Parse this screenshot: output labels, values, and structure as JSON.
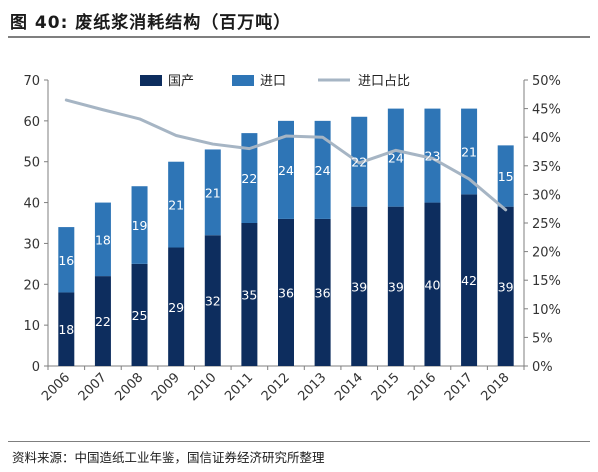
{
  "figure": {
    "title": "图 40: 废纸浆消耗结构（百万吨）",
    "source": "资料来源：中国造纸工业年鉴，国信证券经济研究所整理"
  },
  "colors": {
    "domestic": "#0d2d5e",
    "import": "#2e75b6",
    "ratio_line": "#a6b5c4",
    "axis": "#7f7f7f"
  },
  "chart_data": {
    "type": "bar",
    "stacked": true,
    "categories": [
      "2006",
      "2007",
      "2008",
      "2009",
      "2010",
      "2011",
      "2012",
      "2013",
      "2014",
      "2015",
      "2016",
      "2017",
      "2018"
    ],
    "series": [
      {
        "name": "国产",
        "axis": "left",
        "values": [
          18,
          22,
          25,
          29,
          32,
          35,
          36,
          36,
          39,
          39,
          40,
          42,
          39
        ]
      },
      {
        "name": "进口",
        "axis": "left",
        "values": [
          16,
          18,
          19,
          21,
          21,
          22,
          24,
          24,
          22,
          24,
          23,
          21,
          15
        ]
      },
      {
        "name": "进口占比",
        "type": "line",
        "axis": "right",
        "values": [
          46.5,
          44.8,
          43.2,
          40.3,
          38.8,
          38.0,
          40.2,
          40.0,
          35.5,
          37.7,
          36.3,
          32.7,
          27.3
        ]
      }
    ],
    "y_left": {
      "min": 0,
      "max": 70,
      "ticks": [
        0,
        10,
        20,
        30,
        40,
        50,
        60,
        70
      ]
    },
    "y_right": {
      "min": 0,
      "max": 50,
      "ticks": [
        "0%",
        "5%",
        "10%",
        "15%",
        "20%",
        "25%",
        "30%",
        "35%",
        "40%",
        "45%",
        "50%"
      ]
    },
    "legend": {
      "position": "top",
      "items": [
        "国产",
        "进口",
        "进口占比"
      ]
    },
    "grid": false
  }
}
